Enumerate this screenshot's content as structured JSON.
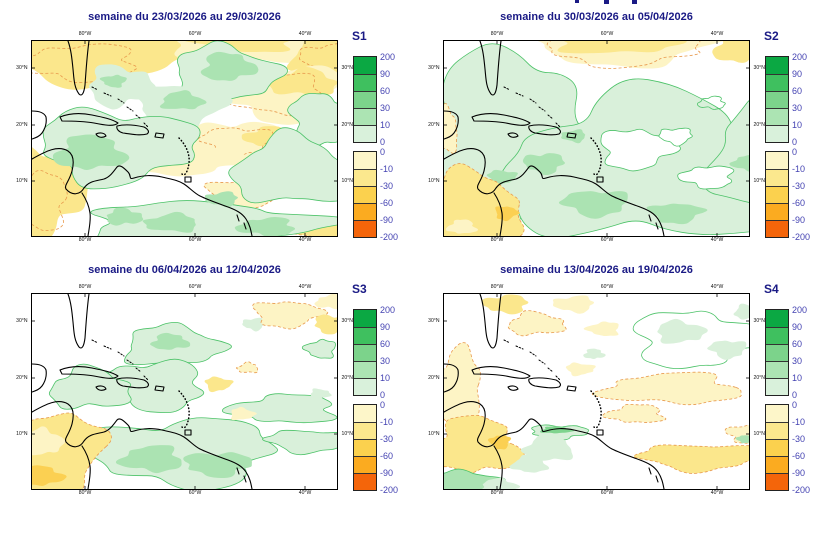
{
  "panels": [
    {
      "id": "s1",
      "title": "semaine du 23/03/2026 au 29/03/2026",
      "legend_label": "S1"
    },
    {
      "id": "s2",
      "title": "semaine du 30/03/2026 au 05/04/2026",
      "legend_label": "S2"
    },
    {
      "id": "s3",
      "title": "semaine du 06/04/2026 au 12/04/2026",
      "legend_label": "S3"
    },
    {
      "id": "s4",
      "title": "semaine du 13/04/2026 au 19/04/2026",
      "legend_label": "S4"
    }
  ],
  "map_axes": {
    "longitude_ticks": [
      "80°W",
      "60°W",
      "40°W"
    ],
    "latitude_ticks": [
      "30°N",
      "20°N",
      "10°N"
    ]
  },
  "colorbar": {
    "positive_ticks": [
      "200",
      "90",
      "60",
      "30",
      "10",
      "0"
    ],
    "positive_colors": [
      "#0ba843",
      "#3fc05f",
      "#7cd38b",
      "#ace4b3",
      "#d9f1db"
    ],
    "negative_ticks": [
      "0",
      "-10",
      "-30",
      "-60",
      "-90",
      "-200"
    ],
    "negative_colors": [
      "#fdf6c9",
      "#fbe88e",
      "#fbd14e",
      "#fbab20",
      "#f4650a"
    ]
  },
  "colors": {
    "title_text": "#1a1a85",
    "tick_text": "#4443b2",
    "map_frame": "#000000",
    "positive_contour": "#4cc268",
    "negative_contour": "#e8994d"
  }
}
